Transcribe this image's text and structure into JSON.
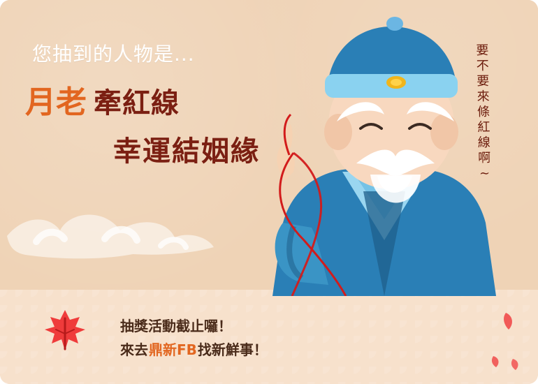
{
  "intro_text": "您抽到的人物是...",
  "character_name": "月老",
  "role_line1": "牽紅線",
  "role_line2": "幸運結姻緣",
  "side_note": "要\n不\n要\n來\n條\n紅\n線\n啊\n~",
  "cta": {
    "line1": "抽獎活動截止囉！",
    "line2_prefix": "來去",
    "line2_brand": "鼎新FB",
    "line2_suffix": "找新鮮事！"
  },
  "colors": {
    "background": "#efd3b6",
    "footer": "#f7e1cc",
    "accent_orange": "#e26620",
    "deep_red": "#7b1f12",
    "thread_red": "#d21b1b"
  },
  "icons": {
    "cloud": "cloud-icon",
    "leaf": "maple-leaf-icon",
    "petals": "petals-icon"
  }
}
